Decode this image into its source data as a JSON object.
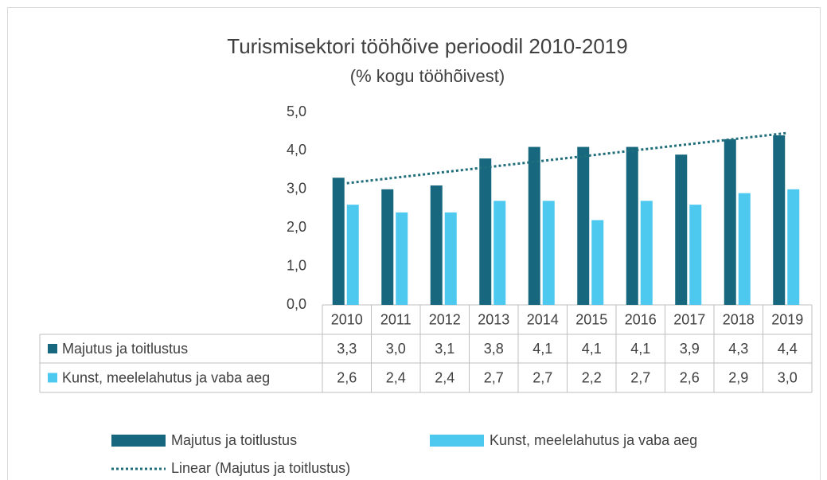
{
  "chart_data": {
    "type": "bar",
    "title": "Turismisektori tööhõive perioodil 2010-2019",
    "subtitle": "(% kogu tööhõivest)",
    "categories": [
      "2010",
      "2011",
      "2012",
      "2013",
      "2014",
      "2015",
      "2016",
      "2017",
      "2018",
      "2019"
    ],
    "series": [
      {
        "name": "Majutus ja toitlustus",
        "color": "#17687f",
        "values": [
          3.3,
          3.0,
          3.1,
          3.8,
          4.1,
          4.1,
          4.1,
          3.9,
          4.3,
          4.4
        ],
        "value_labels": [
          "3,3",
          "3,0",
          "3,1",
          "3,8",
          "4,1",
          "4,1",
          "4,1",
          "3,9",
          "4,3",
          "4,4"
        ]
      },
      {
        "name": "Kunst, meelelahutus ja vaba aeg",
        "color": "#4dc9ef",
        "values": [
          2.6,
          2.4,
          2.4,
          2.7,
          2.7,
          2.2,
          2.7,
          2.6,
          2.9,
          3.0
        ],
        "value_labels": [
          "2,6",
          "2,4",
          "2,4",
          "2,7",
          "2,7",
          "2,2",
          "2,7",
          "2,6",
          "2,9",
          "3,0"
        ]
      }
    ],
    "trendline": {
      "name": "Linear (Majutus ja toitlustus)",
      "color": "#1f6e7a"
    },
    "ylim": [
      0,
      5
    ],
    "yticks": [
      {
        "value": 0,
        "label": "0,0"
      },
      {
        "value": 1,
        "label": "1,0"
      },
      {
        "value": 2,
        "label": "2,0"
      },
      {
        "value": 3,
        "label": "3,0"
      },
      {
        "value": 4,
        "label": "4,0"
      },
      {
        "value": 5,
        "label": "5,0"
      }
    ],
    "grid": false
  }
}
